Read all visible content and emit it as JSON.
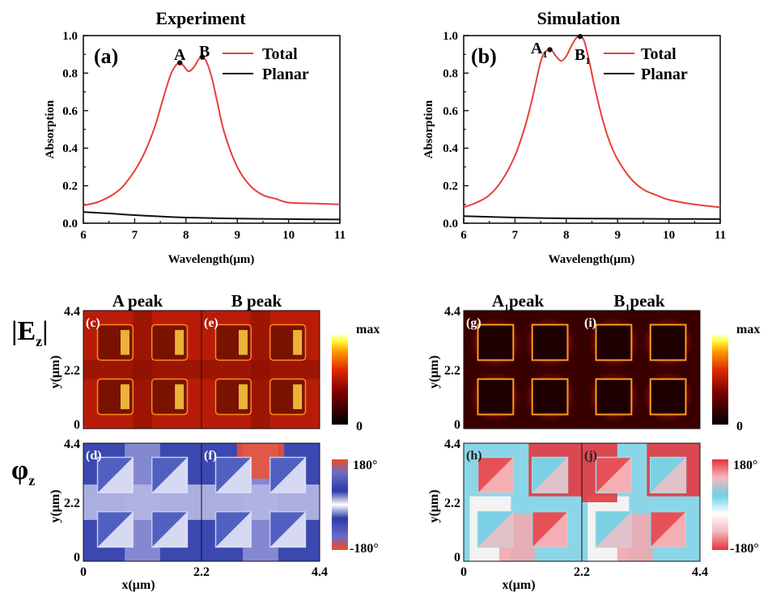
{
  "colors": {
    "total": "#e5403a",
    "planar": "#111111",
    "axis": "#111111"
  },
  "chart_data": [
    {
      "type": "line",
      "panel": "(a)",
      "title": "Experiment",
      "xlabel": "Wavelength(μm)",
      "ylabel": "Absorption",
      "xlim": [
        6,
        11
      ],
      "ylim": [
        0,
        1.0
      ],
      "xticks": [
        6,
        7,
        8,
        9,
        10,
        11
      ],
      "yticks": [
        0.0,
        0.2,
        0.4,
        0.6,
        0.8,
        1.0
      ],
      "legend_position": "top-right",
      "series": [
        {
          "name": "Total",
          "x": [
            6.0,
            6.25,
            6.5,
            6.75,
            7.0,
            7.2,
            7.4,
            7.55,
            7.7,
            7.8,
            7.88,
            7.95,
            8.05,
            8.15,
            8.25,
            8.32,
            8.4,
            8.5,
            8.6,
            8.75,
            9.0,
            9.25,
            9.5,
            9.75,
            10.0,
            10.5,
            11.0
          ],
          "y": [
            0.095,
            0.11,
            0.14,
            0.19,
            0.28,
            0.38,
            0.52,
            0.66,
            0.79,
            0.84,
            0.855,
            0.84,
            0.81,
            0.83,
            0.875,
            0.885,
            0.86,
            0.78,
            0.66,
            0.48,
            0.3,
            0.2,
            0.15,
            0.13,
            0.11,
            0.105,
            0.1
          ]
        },
        {
          "name": "Planar",
          "x": [
            6.0,
            6.5,
            7.0,
            7.5,
            8.0,
            9.0,
            10.0,
            11.0
          ],
          "y": [
            0.06,
            0.052,
            0.043,
            0.036,
            0.03,
            0.025,
            0.022,
            0.02
          ]
        }
      ],
      "points": [
        {
          "label": "A",
          "x": 7.88,
          "y": 0.855
        },
        {
          "label": "B",
          "x": 8.32,
          "y": 0.885
        }
      ]
    },
    {
      "type": "line",
      "panel": "(b)",
      "title": "Simulation",
      "xlabel": "Wavelength(μm)",
      "ylabel": "Absorption",
      "xlim": [
        6,
        11
      ],
      "ylim": [
        0,
        1.0
      ],
      "xticks": [
        6,
        7,
        8,
        9,
        10,
        11
      ],
      "yticks": [
        0.0,
        0.2,
        0.4,
        0.6,
        0.8,
        1.0
      ],
      "legend_position": "top-right",
      "series": [
        {
          "name": "Total",
          "x": [
            6.0,
            6.25,
            6.5,
            6.75,
            7.0,
            7.2,
            7.35,
            7.5,
            7.6,
            7.7,
            7.8,
            7.9,
            8.0,
            8.1,
            8.2,
            8.27,
            8.35,
            8.45,
            8.55,
            8.7,
            8.85,
            9.0,
            9.25,
            9.5,
            9.75,
            10.0,
            10.5,
            11.0
          ],
          "y": [
            0.085,
            0.11,
            0.15,
            0.23,
            0.36,
            0.52,
            0.68,
            0.86,
            0.915,
            0.925,
            0.89,
            0.865,
            0.89,
            0.945,
            0.99,
            0.995,
            0.97,
            0.86,
            0.73,
            0.56,
            0.43,
            0.34,
            0.24,
            0.18,
            0.15,
            0.125,
            0.1,
            0.085
          ]
        },
        {
          "name": "Planar",
          "x": [
            6.0,
            7.0,
            8.0,
            9.0,
            10.0,
            11.0
          ],
          "y": [
            0.038,
            0.03,
            0.026,
            0.024,
            0.023,
            0.022
          ]
        }
      ],
      "points": [
        {
          "label": "A",
          "sub": "1",
          "x": 7.68,
          "y": 0.925
        },
        {
          "label": "B",
          "sub": "1",
          "x": 8.27,
          "y": 0.995
        }
      ]
    },
    {
      "type": "heatmap",
      "panels": [
        {
          "label": "(c)",
          "header": "A peak",
          "quantity": "|Ez|",
          "source": "Experiment"
        },
        {
          "label": "(e)",
          "header": "B peak",
          "quantity": "|Ez|",
          "source": "Experiment"
        },
        {
          "label": "(d)",
          "header": "A peak",
          "quantity": "φz",
          "source": "Experiment"
        },
        {
          "label": "(f)",
          "header": "B peak",
          "quantity": "φz",
          "source": "Experiment"
        },
        {
          "label": "(g)",
          "header": "A1 peak",
          "quantity": "|Ez|",
          "source": "Simulation"
        },
        {
          "label": "(i)",
          "header": "B1 peak",
          "quantity": "|Ez|",
          "source": "Simulation"
        },
        {
          "label": "(h)",
          "header": "A1 peak",
          "quantity": "φz",
          "source": "Simulation"
        },
        {
          "label": "(j)",
          "header": "B1 peak",
          "quantity": "φz",
          "source": "Simulation"
        }
      ],
      "xlabel": "x(μm)",
      "ylabel": "y(μm)",
      "xlim": [
        0,
        4.4
      ],
      "ylim": [
        0,
        4.4
      ],
      "ticks": [
        "0",
        "2.2",
        "4.4"
      ],
      "amplitude_scale": [
        "max",
        "0"
      ],
      "phase_scale": [
        "180°",
        "-180°"
      ]
    }
  ],
  "text": {
    "a_title": "Experiment",
    "b_title": "Simulation",
    "a_label": "(a)",
    "b_label": "(b)",
    "legend_total": "Total",
    "legend_planar": "Planar",
    "xlabel": "Wavelength(μm)",
    "ylabel": "Absorption",
    "pt_a": "A",
    "pt_b": "B",
    "sub_1": "1",
    "head_a": "A peak",
    "head_b": "B peak",
    "peak_word": "peak",
    "row_ez": "|E",
    "row_ez_sub": "z",
    "row_ez_bar": "|",
    "row_phi": "φ",
    "row_phi_sub": "z",
    "lab_c": "(c)",
    "lab_e": "(e)",
    "lab_d": "(d)",
    "lab_f": "(f)",
    "lab_g": "(g)",
    "lab_i": "(i)",
    "lab_h": "(h)",
    "lab_j": "(j)",
    "ymap": "y(μm)",
    "xmap": "x(μm)",
    "t0": "0",
    "t22": "2.2",
    "t44": "4.4",
    "cb_max": "max",
    "cb_zero": "0",
    "cb_180": "180°",
    "cb_m180": "-180°"
  }
}
